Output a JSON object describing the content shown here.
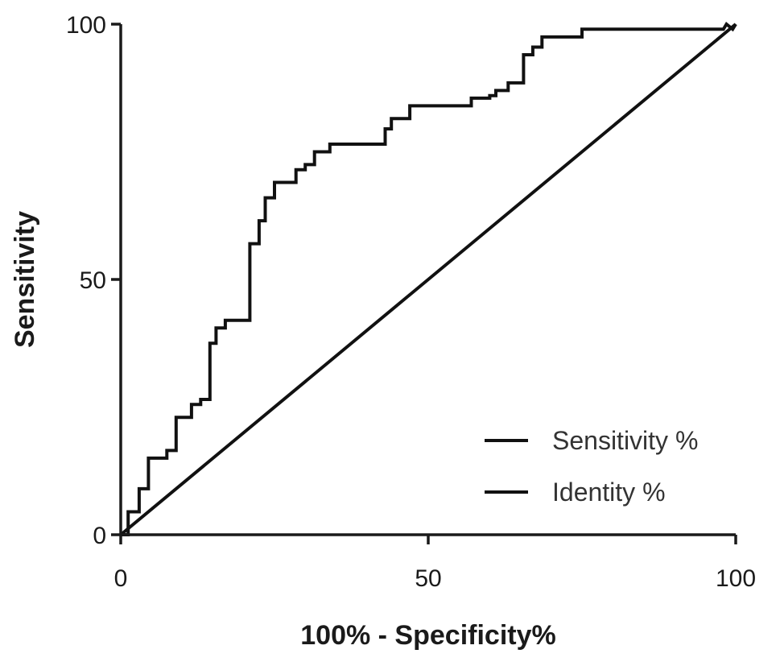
{
  "chart_data": {
    "type": "line",
    "title": "",
    "xlabel": "100% - Specificity%",
    "ylabel": "Sensitivity",
    "xlim": [
      0,
      100
    ],
    "ylim": [
      0,
      100
    ],
    "x_ticks": [
      0,
      50,
      100
    ],
    "y_ticks": [
      0,
      50,
      100
    ],
    "x_tick_labels": [
      "0",
      "50",
      "100"
    ],
    "y_tick_labels": [
      "0",
      "50",
      "100"
    ],
    "grid": false,
    "legend_position": "bottom-right",
    "series": [
      {
        "name": "Sensitivity %",
        "color": "#111111",
        "step": true,
        "x": [
          0,
          1.2,
          1.2,
          3.0,
          3.0,
          4.5,
          4.5,
          7.5,
          7.5,
          9.0,
          9.0,
          11.5,
          11.5,
          13.0,
          13.0,
          14.5,
          14.5,
          15.5,
          15.5,
          17.0,
          17.0,
          18.5,
          18.5,
          21.0,
          21.0,
          22.5,
          22.5,
          23.5,
          23.5,
          25.0,
          25.0,
          28.5,
          28.5,
          30.0,
          30.0,
          31.5,
          31.5,
          34.0,
          34.0,
          35.5,
          35.5,
          43.0,
          43.0,
          44.0,
          44.0,
          47.0,
          47.0,
          57.0,
          57.0,
          60.0,
          60.0,
          61.0,
          61.0,
          63.0,
          63.0,
          65.5,
          65.5,
          67.0,
          67.0,
          68.5,
          68.5,
          75.0,
          75.0,
          98.0,
          98.5,
          99.5,
          100
        ],
        "y": [
          0,
          0,
          4.5,
          4.5,
          9.0,
          9.0,
          15.0,
          15.0,
          16.5,
          16.5,
          23.0,
          23.0,
          25.5,
          25.5,
          26.5,
          26.5,
          37.5,
          37.5,
          40.5,
          40.5,
          42.0,
          42.0,
          42.0,
          42.0,
          57.0,
          57.0,
          61.5,
          61.5,
          66.0,
          66.0,
          69.0,
          69.0,
          71.5,
          71.5,
          72.5,
          72.5,
          75.0,
          75.0,
          76.5,
          76.5,
          76.5,
          76.5,
          79.5,
          79.5,
          81.5,
          81.5,
          84.0,
          84.0,
          85.5,
          85.5,
          86.0,
          86.0,
          87.0,
          87.0,
          88.5,
          88.5,
          94.0,
          94.0,
          95.5,
          95.5,
          97.5,
          97.5,
          99.0,
          99.0,
          100,
          99.0,
          100
        ]
      },
      {
        "name": "Identity %",
        "color": "#111111",
        "step": false,
        "x": [
          0,
          100
        ],
        "y": [
          0,
          100
        ]
      }
    ]
  }
}
